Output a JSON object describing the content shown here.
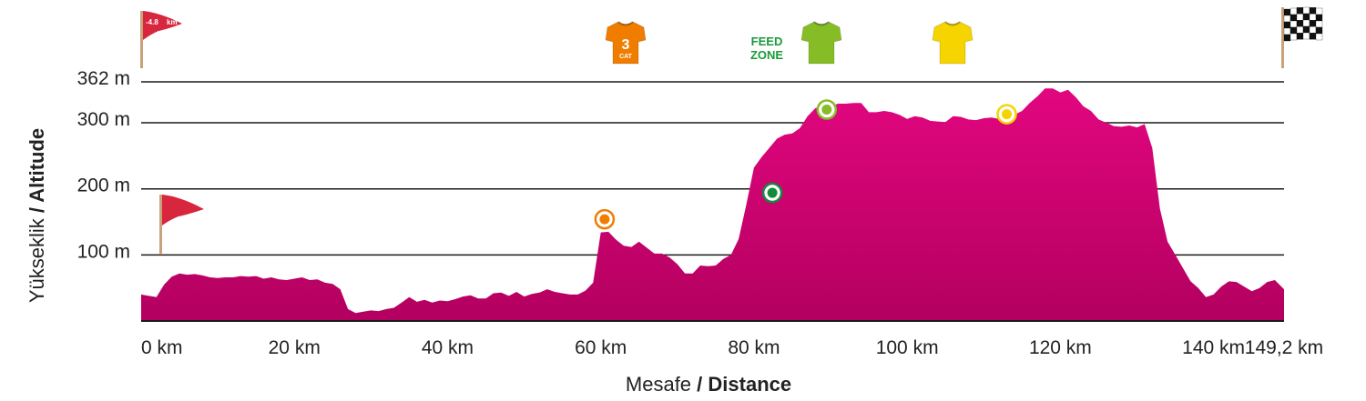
{
  "colors": {
    "profile_top": "#e2067f",
    "profile_bottom": "#b3005f",
    "grid": "#1a1a1a",
    "mountain": "#f07d00",
    "sprint": "#138a3c",
    "feed": "#86bc25",
    "bonus": "#f5d400",
    "flag_red": "#d7263d",
    "pole": "#c9a27a"
  },
  "chart_data": {
    "type": "area",
    "title": "",
    "xlabel_main": "Mesafe",
    "xlabel_sep": " / ",
    "xlabel_bold": "Distance",
    "ylabel_main": "Yükseklik",
    "ylabel_sep": " / ",
    "ylabel_bold": "Altitude",
    "xlim": [
      0,
      149.2
    ],
    "ylim": [
      0,
      362
    ],
    "grid": true,
    "yticks": [
      {
        "value": 100,
        "label": "100 m"
      },
      {
        "value": 200,
        "label": "200 m"
      },
      {
        "value": 300,
        "label": "300 m"
      },
      {
        "value": 362,
        "label": "362 m"
      }
    ],
    "xticks": [
      {
        "value": 0,
        "label": "0 km"
      },
      {
        "value": 20,
        "label": "20 km"
      },
      {
        "value": 40,
        "label": "40 km"
      },
      {
        "value": 60,
        "label": "60 km"
      },
      {
        "value": 80,
        "label": "80 km"
      },
      {
        "value": 100,
        "label": "100 km"
      },
      {
        "value": 120,
        "label": "120 km"
      },
      {
        "value": 140,
        "label": "140 km"
      },
      {
        "value": 149.2,
        "label": "149,2 km"
      }
    ],
    "x": [
      0,
      1,
      2,
      3,
      4,
      5,
      6,
      7,
      8,
      9,
      10,
      11,
      12,
      13,
      14,
      15,
      16,
      17,
      18,
      19,
      20,
      21,
      22,
      23,
      24,
      25,
      26,
      27,
      28,
      29,
      30,
      31,
      32,
      33,
      34,
      35,
      36,
      37,
      38,
      39,
      40,
      41,
      42,
      43,
      44,
      45,
      46,
      47,
      48,
      49,
      50,
      51,
      52,
      53,
      54,
      55,
      56,
      57,
      58,
      59,
      60,
      61,
      62,
      63,
      64,
      65,
      66,
      67,
      68,
      69,
      70,
      71,
      72,
      73,
      74,
      75,
      76,
      77,
      78,
      79,
      80,
      81,
      82,
      83,
      84,
      85,
      86,
      87,
      88,
      89,
      90,
      91,
      92,
      93,
      94,
      95,
      96,
      97,
      98,
      99,
      100,
      101,
      102,
      103,
      104,
      105,
      106,
      107,
      108,
      109,
      110,
      111,
      112,
      113,
      114,
      115,
      116,
      117,
      118,
      119,
      120,
      121,
      122,
      123,
      124,
      125,
      126,
      127,
      128,
      129,
      130,
      131,
      132,
      133,
      134,
      135,
      136,
      137,
      138,
      139,
      140,
      141,
      142,
      143,
      144,
      145,
      146,
      147,
      148,
      149.2
    ],
    "y": [
      40,
      38,
      36,
      55,
      67,
      72,
      70,
      71,
      69,
      66,
      65,
      66,
      66,
      68,
      67,
      68,
      64,
      66,
      63,
      62,
      64,
      66,
      62,
      63,
      58,
      56,
      48,
      18,
      12,
      14,
      16,
      15,
      18,
      20,
      28,
      36,
      29,
      32,
      28,
      31,
      30,
      33,
      37,
      39,
      34,
      34,
      42,
      43,
      38,
      44,
      37,
      41,
      43,
      48,
      44,
      42,
      40,
      40,
      46,
      58,
      134,
      135,
      123,
      114,
      112,
      120,
      111,
      102,
      102,
      96,
      86,
      72,
      72,
      84,
      83,
      84,
      94,
      100,
      124,
      176,
      232,
      248,
      262,
      276,
      282,
      284,
      292,
      310,
      322,
      327,
      325,
      329,
      329,
      330,
      330,
      316,
      316,
      318,
      316,
      312,
      306,
      310,
      308,
      303,
      302,
      301,
      310,
      309,
      305,
      304,
      307,
      308,
      306,
      308,
      312,
      318,
      330,
      340,
      352,
      352,
      346,
      350,
      339,
      325,
      318,
      305,
      300,
      295,
      294,
      296,
      293,
      298,
      262,
      170,
      120,
      100,
      80,
      60,
      50,
      36,
      40,
      52,
      60,
      59,
      52,
      45,
      50,
      59,
      62,
      48
    ],
    "markers": [
      {
        "kind": "mountain",
        "x": 60.5,
        "y": 154,
        "icon": "orange-jersey-icon",
        "cat_number": "3",
        "cat_text": "CAT"
      },
      {
        "kind": "sprint",
        "x": 82.4,
        "y": 194
      },
      {
        "kind": "feed",
        "x": 89.5,
        "y": 320,
        "label_line1": "FEED",
        "label_line2": "ZONE",
        "icon": "green-jersey-icon"
      },
      {
        "kind": "bonus",
        "x": 113.0,
        "y": 313,
        "icon": "yellow-jersey-icon"
      }
    ],
    "start_flag": {
      "x": 0,
      "icon": "red-flag-icon"
    },
    "neutral_flag": {
      "x": 0,
      "label": "-4.8",
      "unit": "km",
      "icon": "red-flag-icon"
    },
    "finish_flag": {
      "x": 149.2,
      "icon": "checkered-flag-icon"
    }
  }
}
